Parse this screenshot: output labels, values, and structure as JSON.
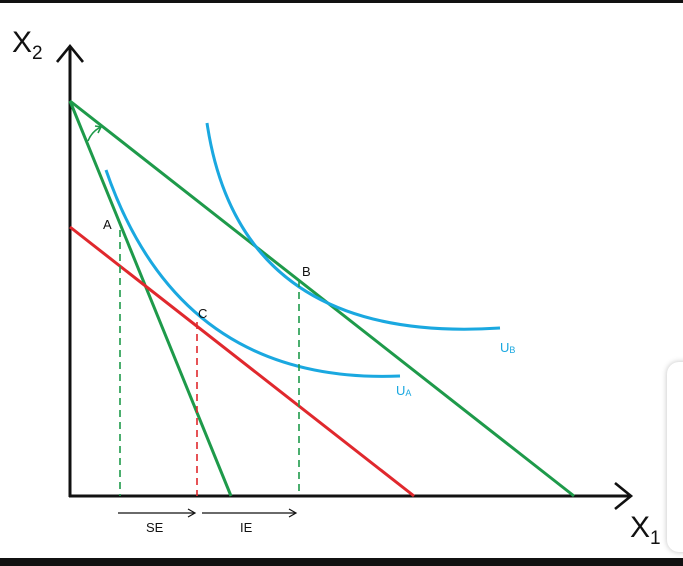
{
  "axes": {
    "y_label": "X",
    "y_sub": "2",
    "x_label": "X",
    "x_sub": "1"
  },
  "points": {
    "a": "A",
    "b": "B",
    "c": "C"
  },
  "curves": {
    "ua_main": "U",
    "ua_sub": "A",
    "ub_main": "U",
    "ub_sub": "B"
  },
  "effects": {
    "se": "SE",
    "ie": "IE"
  },
  "colors": {
    "budget_lines": "#1e9a4a",
    "compensated_line": "#e0282d",
    "indifference": "#1aa8e0",
    "axes": "#111111"
  }
}
